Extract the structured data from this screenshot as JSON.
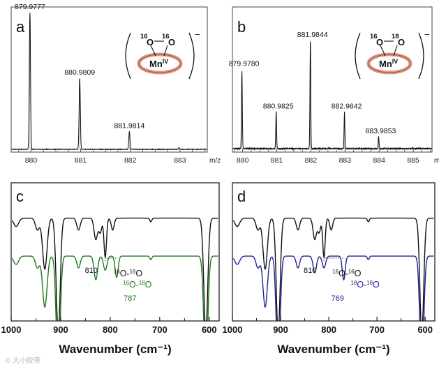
{
  "figure": {
    "watermark": "© 大小胶带"
  },
  "chart_data": [
    {
      "type": "line",
      "panel_label": "a",
      "title": "",
      "xlabel": "m/z",
      "ylabel": "",
      "xlim": [
        879.6,
        883.55
      ],
      "ylim": [
        0,
        1.05
      ],
      "xticks": [
        880,
        881,
        882,
        883
      ],
      "xtick_labels": [
        "880",
        "881",
        "882",
        "883"
      ],
      "peaks": [
        {
          "x": 879.9777,
          "y": 1.0,
          "label": "879.9777"
        },
        {
          "x": 880.9809,
          "y": 0.52,
          "label": "880.9809"
        },
        {
          "x": 881.9814,
          "y": 0.13,
          "label": "881.9814"
        },
        {
          "x": 882.98,
          "y": 0.012,
          "label": ""
        }
      ],
      "inset": {
        "label_a": "16",
        "atom_a": "O",
        "label_b": "16",
        "atom_b": "O",
        "metal": "Mn",
        "oxidation": "IV",
        "charge": "−"
      }
    },
    {
      "type": "line",
      "panel_label": "b",
      "title": "",
      "xlabel": "m/",
      "ylabel": "",
      "xlim": [
        879.7,
        885.55
      ],
      "ylim": [
        0,
        1.05
      ],
      "xticks": [
        880,
        881,
        882,
        883,
        884,
        885
      ],
      "xtick_labels": [
        "880",
        "881",
        "882",
        "883",
        "884",
        "885"
      ],
      "peaks": [
        {
          "x": 879.978,
          "y": 0.72,
          "label": "879.9780"
        },
        {
          "x": 880.9825,
          "y": 0.34,
          "label": "880.9825"
        },
        {
          "x": 881.9844,
          "y": 1.0,
          "label": "881.9844"
        },
        {
          "x": 882.9842,
          "y": 0.34,
          "label": "882.9842"
        },
        {
          "x": 883.9853,
          "y": 0.11,
          "label": "883.9853"
        }
      ],
      "inset": {
        "label_a": "16",
        "atom_a": "O",
        "label_b": "18",
        "atom_b": "O",
        "metal": "Mn",
        "oxidation": "IV",
        "charge": "−"
      }
    },
    {
      "type": "line",
      "panel_label": "c",
      "title": "",
      "xlabel": "Wavenumber (cm⁻¹)",
      "ylabel": "",
      "xlim": [
        1000,
        580
      ],
      "ylim": [
        0,
        1
      ],
      "xticks": [
        1000,
        900,
        800,
        700,
        600
      ],
      "xtick_labels": [
        "1000",
        "900",
        "800",
        "700",
        "600"
      ],
      "series": [
        {
          "name": "16O-16O",
          "color": "#111111",
          "baseline": 0.855,
          "bands": [
            {
              "x": 990,
              "depth": 0.07,
              "width": 5
            },
            {
              "x": 947,
              "depth": 0.1,
              "width": 4
            },
            {
              "x": 932,
              "depth": 0.43,
              "width": 4.5
            },
            {
              "x": 905,
              "depth": 0.97,
              "width": 4
            },
            {
              "x": 864,
              "depth": 0.1,
              "width": 3.5
            },
            {
              "x": 829,
              "depth": 0.18,
              "width": 3.5
            },
            {
              "x": 820,
              "depth": 0.12,
              "width": 3
            },
            {
              "x": 810,
              "depth": 0.33,
              "width": 2.5
            },
            {
              "x": 795,
              "depth": 0.1,
              "width": 3
            },
            {
              "x": 718,
              "depth": 0.03,
              "width": 2
            },
            {
              "x": 607,
              "depth": 0.97,
              "width": 4
            }
          ]
        },
        {
          "name": "16O-18O",
          "color": "#1e7a1e",
          "baseline": 0.535,
          "bands": [
            {
              "x": 990,
              "depth": 0.07,
              "width": 5
            },
            {
              "x": 947,
              "depth": 0.1,
              "width": 4
            },
            {
              "x": 932,
              "depth": 0.43,
              "width": 4.5
            },
            {
              "x": 905,
              "depth": 0.97,
              "width": 4
            },
            {
              "x": 864,
              "depth": 0.1,
              "width": 3.5
            },
            {
              "x": 829,
              "depth": 0.2,
              "width": 3.5
            },
            {
              "x": 810,
              "depth": 0.12,
              "width": 3.5
            },
            {
              "x": 787,
              "depth": 0.18,
              "width": 3
            },
            {
              "x": 718,
              "depth": 0.03,
              "width": 2
            },
            {
              "x": 607,
              "depth": 0.97,
              "width": 4
            }
          ]
        }
      ],
      "annotations": [
        {
          "text": "810",
          "x": 810,
          "color": "#111111"
        },
        {
          "text": "787",
          "x": 787,
          "color": "#1e7a1e"
        }
      ],
      "species_top": {
        "prefix_a": "16",
        "atom_a": "O",
        "dash": "-",
        "prefix_b": "16",
        "atom_b": "O",
        "color": "#111111"
      },
      "species_bottom": {
        "prefix_a": "16",
        "atom_a": "O",
        "dash": "-",
        "prefix_b": "18",
        "atom_b": "O",
        "color": "#1e7a1e"
      }
    },
    {
      "type": "line",
      "panel_label": "d",
      "title": "",
      "xlabel": "Wavenumber (cm⁻¹)",
      "ylabel": "",
      "xlim": [
        1000,
        580
      ],
      "ylim": [
        0,
        1
      ],
      "xticks": [
        1000,
        900,
        800,
        700,
        600
      ],
      "xtick_labels": [
        "1000",
        "900",
        "800",
        "700",
        "600"
      ],
      "series": [
        {
          "name": "16O-16O",
          "color": "#111111",
          "baseline": 0.855,
          "bands": [
            {
              "x": 990,
              "depth": 0.07,
              "width": 5
            },
            {
              "x": 947,
              "depth": 0.1,
              "width": 4
            },
            {
              "x": 932,
              "depth": 0.43,
              "width": 4.5
            },
            {
              "x": 905,
              "depth": 0.97,
              "width": 4
            },
            {
              "x": 864,
              "depth": 0.1,
              "width": 3.5
            },
            {
              "x": 829,
              "depth": 0.18,
              "width": 3.5
            },
            {
              "x": 820,
              "depth": 0.12,
              "width": 3
            },
            {
              "x": 810,
              "depth": 0.33,
              "width": 2.5
            },
            {
              "x": 795,
              "depth": 0.1,
              "width": 3
            },
            {
              "x": 718,
              "depth": 0.03,
              "width": 2
            },
            {
              "x": 607,
              "depth": 0.97,
              "width": 4
            }
          ]
        },
        {
          "name": "18O-18O",
          "color": "#22229a",
          "baseline": 0.535,
          "bands": [
            {
              "x": 990,
              "depth": 0.07,
              "width": 5
            },
            {
              "x": 947,
              "depth": 0.1,
              "width": 4
            },
            {
              "x": 932,
              "depth": 0.43,
              "width": 4.5
            },
            {
              "x": 905,
              "depth": 0.97,
              "width": 4
            },
            {
              "x": 864,
              "depth": 0.1,
              "width": 3.5
            },
            {
              "x": 829,
              "depth": 0.14,
              "width": 3.5
            },
            {
              "x": 810,
              "depth": 0.1,
              "width": 3.5
            },
            {
              "x": 769,
              "depth": 0.2,
              "width": 3
            },
            {
              "x": 718,
              "depth": 0.03,
              "width": 2
            },
            {
              "x": 607,
              "depth": 0.97,
              "width": 4
            }
          ]
        }
      ],
      "annotations": [
        {
          "text": "810",
          "x": 810,
          "color": "#111111"
        },
        {
          "text": "769",
          "x": 769,
          "color": "#22229a"
        }
      ],
      "species_top": {
        "prefix_a": "16",
        "atom_a": "O",
        "dash": "-",
        "prefix_b": "16",
        "atom_b": "O",
        "color": "#111111"
      },
      "species_bottom": {
        "prefix_a": "18",
        "atom_a": "O",
        "dash": "-",
        "prefix_b": "18",
        "atom_b": "O",
        "color": "#22229a"
      }
    }
  ]
}
